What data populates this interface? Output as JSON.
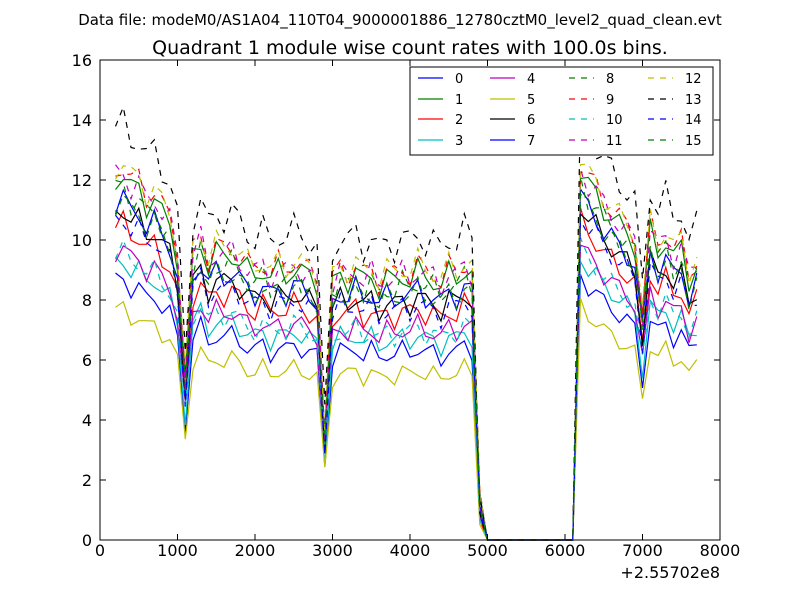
{
  "suptitle": "Data file: modeM0/AS1A04_110T04_9000001886_12780cztM0_level2_quad_clean.evt",
  "chart_data": {
    "type": "line",
    "title": "Quadrant 1 module wise count rates with 100.0s bins.",
    "xlabel": "",
    "ylabel": "",
    "x_offset_label": "+2.55702e8",
    "xlim": [
      0,
      8000
    ],
    "ylim": [
      0,
      16
    ],
    "xticks": [
      0,
      1000,
      2000,
      3000,
      4000,
      5000,
      6000,
      7000,
      8000
    ],
    "yticks": [
      0,
      2,
      4,
      6,
      8,
      10,
      12,
      14,
      16
    ],
    "grid": false,
    "legend": {
      "placement": "top-right",
      "columns": 4
    },
    "x": [
      200,
      300,
      400,
      500,
      600,
      700,
      800,
      900,
      1000,
      1100,
      1200,
      1300,
      1400,
      1500,
      1600,
      1700,
      1800,
      1900,
      2000,
      2100,
      2200,
      2300,
      2400,
      2500,
      2600,
      2700,
      2800,
      2900,
      3000,
      3100,
      3200,
      3300,
      3400,
      3500,
      3600,
      3700,
      3800,
      3900,
      4000,
      4100,
      4200,
      4300,
      4400,
      4500,
      4600,
      4700,
      4800,
      4900,
      5000,
      5100,
      5200,
      5300,
      5400,
      5500,
      5600,
      5700,
      5800,
      5900,
      6000,
      6100,
      6200,
      6300,
      6400,
      6500,
      6600,
      6700,
      6800,
      6900,
      7000,
      7100,
      7200,
      7300,
      7400,
      7500,
      7600,
      7700
    ],
    "series": [
      {
        "name": "0",
        "color": "#0000ff",
        "dash": "solid",
        "y_base": 8.6
      },
      {
        "name": "1",
        "color": "#008000",
        "dash": "solid",
        "y_base": 12.0
      },
      {
        "name": "2",
        "color": "#ff0000",
        "dash": "solid",
        "y_base": 10.4
      },
      {
        "name": "3",
        "color": "#00bfbf",
        "dash": "solid",
        "y_base": 9.2
      },
      {
        "name": "4",
        "color": "#bf00bf",
        "dash": "solid",
        "y_base": 9.6
      },
      {
        "name": "5",
        "color": "#bfbf00",
        "dash": "solid",
        "y_base": 7.6
      },
      {
        "name": "6",
        "color": "#000000",
        "dash": "solid",
        "y_base": 10.9
      },
      {
        "name": "7",
        "color": "#0000ff",
        "dash": "solid",
        "y_base": 11.2
      },
      {
        "name": "8",
        "color": "#008000",
        "dash": "dashed",
        "y_base": 11.6
      },
      {
        "name": "9",
        "color": "#ff0000",
        "dash": "dashed",
        "y_base": 12.3
      },
      {
        "name": "10",
        "color": "#00bfbf",
        "dash": "dashed",
        "y_base": 9.5
      },
      {
        "name": "11",
        "color": "#bf00bf",
        "dash": "dashed",
        "y_base": 12.1
      },
      {
        "name": "12",
        "color": "#bfbf00",
        "dash": "dashed",
        "y_base": 12.4
      },
      {
        "name": "13",
        "color": "#000000",
        "dash": "dashed",
        "y_base": 13.7
      },
      {
        "name": "14",
        "color": "#0000ff",
        "dash": "dashed",
        "y_base": 10.6
      },
      {
        "name": "15",
        "color": "#008000",
        "dash": "dashed",
        "y_base": 11.2
      }
    ],
    "profile": [
      1.0,
      1.02,
      0.97,
      0.98,
      0.93,
      0.95,
      0.9,
      0.88,
      0.78,
      0.45,
      0.78,
      0.83,
      0.76,
      0.8,
      0.78,
      0.8,
      0.77,
      0.75,
      0.73,
      0.76,
      0.72,
      0.75,
      0.73,
      0.76,
      0.74,
      0.73,
      0.71,
      0.3,
      0.7,
      0.74,
      0.72,
      0.75,
      0.71,
      0.74,
      0.7,
      0.73,
      0.71,
      0.74,
      0.72,
      0.75,
      0.72,
      0.73,
      0.7,
      0.74,
      0.72,
      0.76,
      0.73,
      0.1,
      0.0,
      0.0,
      0.0,
      0.0,
      0.0,
      0.0,
      0.0,
      0.0,
      0.0,
      0.0,
      0.0,
      0.0,
      1.03,
      0.98,
      0.96,
      0.92,
      0.9,
      0.87,
      0.85,
      0.82,
      0.62,
      0.86,
      0.8,
      0.84,
      0.78,
      0.81,
      0.72,
      0.77
    ]
  }
}
